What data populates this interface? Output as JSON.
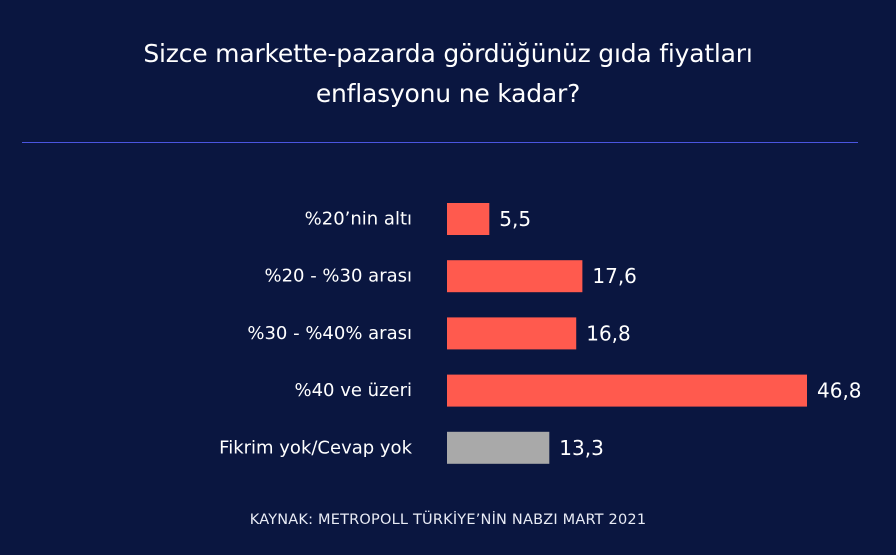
{
  "colors": {
    "background": "#0a1640",
    "divider": "#4a55e0",
    "bar_primary": "#ff5a4e",
    "bar_neutral": "#a9a9a9",
    "text": "#ffffff"
  },
  "chart_data": {
    "type": "bar",
    "orientation": "horizontal",
    "title": "Sizce markette-pazarda gördüğünüz gıda fiyatları enflasyonu ne kadar?",
    "title_lines": [
      "Sizce markette-pazarda gördüğünüz gıda fiyatları",
      "enflasyonu ne kadar?"
    ],
    "categories": [
      "%20’nin altı",
      "%20 - %30 arası",
      "%30 - %40% arası",
      "%40 ve üzeri",
      "Fikrim yok/Cevap yok"
    ],
    "values": [
      5.5,
      17.6,
      16.8,
      46.8,
      13.3
    ],
    "value_labels": [
      "5,5",
      "17,6",
      "16,8",
      "46,8",
      "13,3"
    ],
    "bar_colors": [
      "#ff5a4e",
      "#ff5a4e",
      "#ff5a4e",
      "#ff5a4e",
      "#a9a9a9"
    ],
    "xlim": [
      0,
      46.8
    ],
    "grid": false,
    "legend": "none"
  },
  "source": "KAYNAK: METROPOLL TÜRKİYE’NİN NABZI MART 2021"
}
